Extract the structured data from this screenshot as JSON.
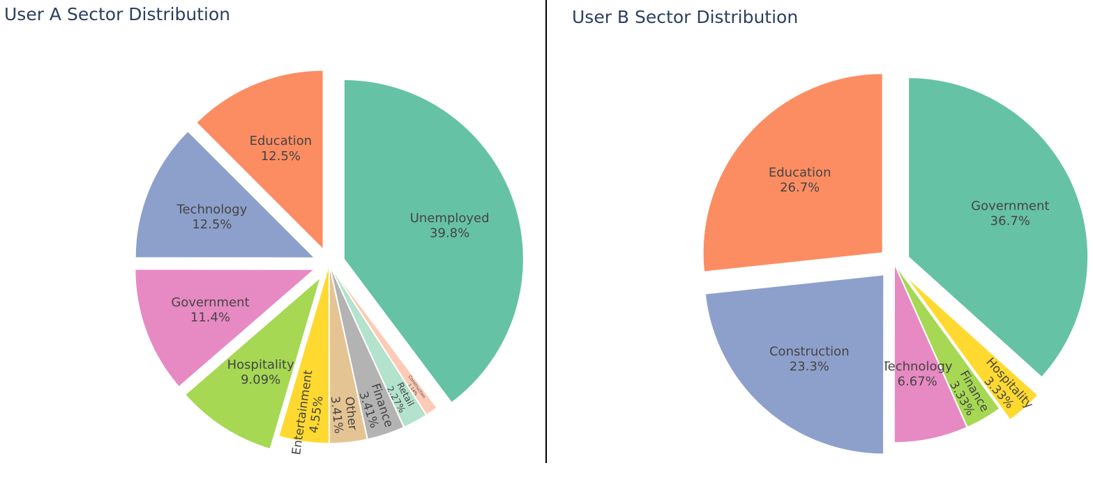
{
  "chart_data": [
    {
      "type": "pie",
      "title": "User A Sector Distribution",
      "labels": [
        "Unemployed",
        "Construction",
        "Retail",
        "Finance",
        "Other",
        "Entertainment",
        "Hospitality",
        "Government",
        "Technology",
        "Education"
      ],
      "values": [
        39.8,
        1.14,
        2.27,
        3.41,
        3.41,
        4.55,
        9.09,
        11.4,
        12.5,
        12.5
      ],
      "text": [
        "39.8%",
        "1.14%",
        "2.27%",
        "3.41%",
        "3.41%",
        "4.55%",
        "9.09%",
        "11.4%",
        "12.5%",
        "12.5%"
      ],
      "colors": [
        "#66c2a5",
        "#fdcbb5",
        "#b3e2cd",
        "#b3b3b3",
        "#e5c494",
        "#ffd92f",
        "#a6d854",
        "#e78ac3",
        "#8da0cb",
        "#fc8d62"
      ],
      "pulled": [
        "Unemployed",
        "Government",
        "Technology",
        "Education",
        "Hospitality"
      ],
      "direction": "clockwise",
      "showlegend": false
    },
    {
      "type": "pie",
      "title": "User B Sector Distribution",
      "labels": [
        "Government",
        "Hospitality",
        "Finance",
        "Technology",
        "Construction",
        "Education"
      ],
      "values": [
        36.7,
        3.33,
        3.33,
        6.67,
        23.3,
        26.7
      ],
      "text": [
        "36.7%",
        "3.33%",
        "3.33%",
        "6.67%",
        "23.3%",
        "26.7%"
      ],
      "colors": [
        "#66c2a5",
        "#ffd92f",
        "#a6d854",
        "#e78ac3",
        "#8da0cb",
        "#fc8d62"
      ],
      "pulled": [
        "Government",
        "Hospitality",
        "Construction",
        "Education"
      ],
      "direction": "clockwise",
      "showlegend": false
    }
  ]
}
